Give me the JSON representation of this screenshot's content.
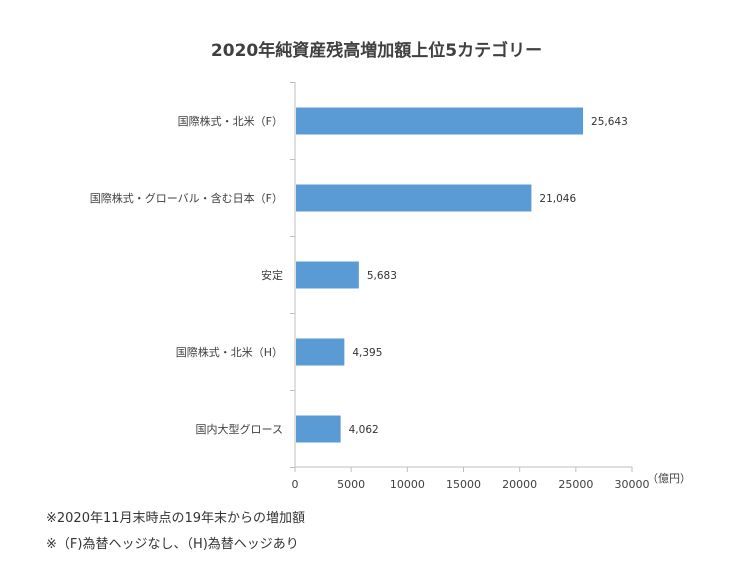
{
  "chart_data": {
    "type": "bar",
    "orientation": "horizontal",
    "title": "2020年純資産残高増加額上位5カテゴリー",
    "categories": [
      "国際株式・北米（F）",
      "国際株式・グローバル・含む日本（F）",
      "安定",
      "国際株式・北米（H）",
      "国内大型グロース"
    ],
    "values": [
      25643,
      21046,
      5683,
      4395,
      4062
    ],
    "value_labels": [
      "25,643",
      "21,046",
      "5,683",
      "4,395",
      "4,062"
    ],
    "xlim": [
      0,
      30000
    ],
    "xticks": [
      0,
      5000,
      10000,
      15000,
      20000,
      25000,
      30000
    ],
    "xtick_labels": [
      "0",
      "5000",
      "10000",
      "15000",
      "20000",
      "25000",
      "30000"
    ],
    "xunit": "（億円）",
    "grid": false,
    "legend": "none",
    "bar_color": "#5b9bd5"
  },
  "notes": [
    "※2020年11月末時点の19年末からの増加額",
    "※（F)為替ヘッジなし、（H)為替ヘッジあり"
  ]
}
